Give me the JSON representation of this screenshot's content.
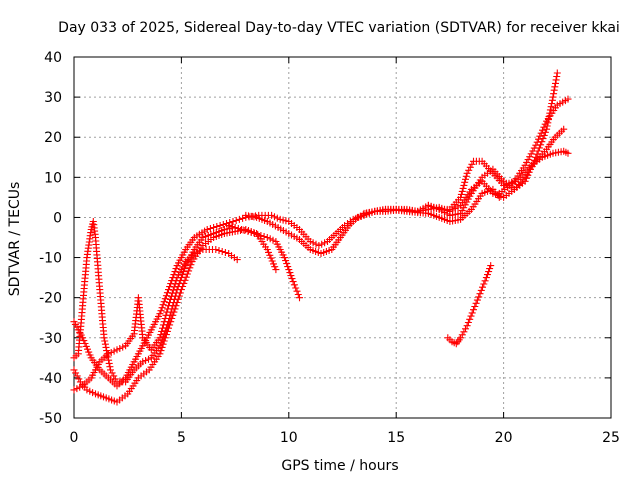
{
  "chart_data": {
    "type": "scatter",
    "title": "Day 033 of 2025, Sidereal Day-to-day VTEC variation (SDTVAR) for receiver kkai",
    "xlabel": "GPS time / hours",
    "ylabel": "SDTVAR / TECUs",
    "xlim": [
      0,
      25
    ],
    "ylim": [
      -50,
      40
    ],
    "x_ticks": [
      0,
      5,
      10,
      15,
      20,
      25
    ],
    "y_ticks": [
      -50,
      -40,
      -30,
      -20,
      -10,
      0,
      10,
      20,
      30,
      40
    ],
    "x_tick_labels": [
      "0",
      "5",
      "10",
      "15",
      "20",
      "25"
    ],
    "y_tick_labels": [
      "-50",
      "-40",
      "-30",
      "-20",
      "-10",
      "0",
      "10",
      "20",
      "30",
      "40"
    ],
    "grid": true,
    "marker": "plus",
    "color": "#ff0000",
    "series": [
      {
        "name": "track-1",
        "points": [
          [
            0.0,
            -35
          ],
          [
            0.2,
            -34
          ],
          [
            0.4,
            -22
          ],
          [
            0.6,
            -10
          ],
          [
            0.8,
            -3
          ],
          [
            0.9,
            -1
          ],
          [
            1.0,
            -5
          ],
          [
            1.2,
            -18
          ],
          [
            1.4,
            -30
          ],
          [
            1.7,
            -38
          ],
          [
            2.0,
            -41
          ],
          [
            2.4,
            -41
          ],
          [
            2.8,
            -38
          ],
          [
            3.2,
            -36
          ],
          [
            3.6,
            -35
          ],
          [
            4.0,
            -32
          ],
          [
            4.4,
            -26
          ],
          [
            4.8,
            -18
          ],
          [
            5.2,
            -12
          ],
          [
            5.6,
            -8
          ],
          [
            6.0,
            -5
          ],
          [
            6.5,
            -4
          ],
          [
            7.0,
            -3
          ],
          [
            7.5,
            -2.5
          ]
        ]
      },
      {
        "name": "track-2",
        "points": [
          [
            0.0,
            -26
          ],
          [
            0.4,
            -30
          ],
          [
            0.8,
            -35
          ],
          [
            1.2,
            -38
          ],
          [
            1.6,
            -40
          ],
          [
            2.0,
            -42
          ],
          [
            2.4,
            -40
          ],
          [
            2.8,
            -36
          ],
          [
            3.2,
            -32
          ],
          [
            3.6,
            -28
          ],
          [
            4.0,
            -24
          ],
          [
            4.4,
            -18
          ],
          [
            4.8,
            -12
          ],
          [
            5.2,
            -8
          ],
          [
            5.6,
            -5
          ],
          [
            6.2,
            -3
          ],
          [
            6.8,
            -2
          ],
          [
            7.4,
            -1
          ],
          [
            8.0,
            0
          ],
          [
            8.6,
            0.5
          ],
          [
            9.2,
            0.5
          ],
          [
            9.6,
            -0.5
          ],
          [
            10.0,
            -1
          ],
          [
            10.5,
            -3
          ],
          [
            11.0,
            -6
          ],
          [
            11.4,
            -7
          ],
          [
            11.8,
            -6
          ],
          [
            12.2,
            -4
          ],
          [
            12.6,
            -2
          ],
          [
            13.0,
            -0.5
          ],
          [
            13.5,
            0.5
          ],
          [
            14.0,
            1.5
          ],
          [
            14.5,
            2
          ],
          [
            15.0,
            2
          ],
          [
            15.5,
            1.8
          ],
          [
            16.0,
            1.5
          ],
          [
            16.5,
            2
          ],
          [
            17.0,
            2.5
          ],
          [
            17.5,
            1.5
          ],
          [
            18.0,
            3
          ],
          [
            18.5,
            7
          ],
          [
            19.0,
            9
          ],
          [
            19.5,
            6
          ],
          [
            20.0,
            5
          ],
          [
            20.5,
            7
          ],
          [
            21.0,
            10
          ],
          [
            21.5,
            14
          ],
          [
            22.0,
            17
          ],
          [
            22.4,
            20
          ],
          [
            22.8,
            22
          ]
        ]
      },
      {
        "name": "track-3",
        "points": [
          [
            0.0,
            -43
          ],
          [
            0.4,
            -42
          ],
          [
            0.8,
            -40
          ],
          [
            1.2,
            -36
          ],
          [
            1.6,
            -34
          ],
          [
            2.0,
            -33
          ],
          [
            2.4,
            -32
          ],
          [
            2.8,
            -29
          ],
          [
            3.0,
            -20
          ],
          [
            3.2,
            -30
          ],
          [
            3.6,
            -33
          ],
          [
            4.0,
            -30
          ],
          [
            4.4,
            -22
          ],
          [
            4.8,
            -15
          ],
          [
            5.2,
            -11
          ],
          [
            5.6,
            -9
          ],
          [
            6.0,
            -8
          ],
          [
            6.6,
            -8
          ],
          [
            7.2,
            -9
          ],
          [
            7.6,
            -10.5
          ]
        ]
      },
      {
        "name": "track-4",
        "points": [
          [
            0.0,
            -38
          ],
          [
            0.3,
            -41
          ],
          [
            0.6,
            -43
          ],
          [
            1.0,
            -44
          ],
          [
            1.5,
            -45
          ],
          [
            2.0,
            -46
          ],
          [
            2.5,
            -44
          ],
          [
            3.0,
            -40
          ],
          [
            3.5,
            -38
          ],
          [
            4.0,
            -34
          ],
          [
            4.5,
            -26
          ],
          [
            5.0,
            -18
          ],
          [
            5.5,
            -11
          ],
          [
            6.0,
            -7
          ],
          [
            6.5,
            -5
          ],
          [
            7.0,
            -4
          ],
          [
            7.5,
            -3.5
          ],
          [
            8.0,
            -3
          ],
          [
            8.5,
            -4
          ],
          [
            9.0,
            -8
          ],
          [
            9.4,
            -13
          ]
        ]
      },
      {
        "name": "track-5",
        "points": [
          [
            7.2,
            -2
          ],
          [
            7.8,
            -3
          ],
          [
            8.4,
            -4
          ],
          [
            9.0,
            -5
          ],
          [
            9.4,
            -6
          ],
          [
            9.8,
            -10
          ],
          [
            10.2,
            -16
          ],
          [
            10.5,
            -20
          ]
        ]
      },
      {
        "name": "track-6",
        "points": [
          [
            8.0,
            0.5
          ],
          [
            8.5,
            0
          ],
          [
            9.0,
            -1
          ],
          [
            9.5,
            -2.5
          ],
          [
            10.0,
            -4
          ],
          [
            10.5,
            -5.5
          ],
          [
            11.0,
            -8
          ],
          [
            11.5,
            -9
          ],
          [
            12.0,
            -8
          ],
          [
            12.4,
            -5
          ],
          [
            12.8,
            -2
          ],
          [
            13.2,
            0
          ],
          [
            13.6,
            1
          ],
          [
            14.0,
            1.5
          ],
          [
            14.5,
            1.5
          ],
          [
            15.0,
            1.8
          ],
          [
            15.5,
            1.5
          ],
          [
            16.0,
            1.2
          ],
          [
            16.5,
            1
          ],
          [
            17.0,
            0
          ],
          [
            17.5,
            -1
          ],
          [
            18.0,
            -0.5
          ],
          [
            18.5,
            2
          ],
          [
            19.0,
            6
          ],
          [
            19.5,
            7
          ],
          [
            19.8,
            5
          ]
        ]
      },
      {
        "name": "track-7",
        "points": [
          [
            13.5,
            1
          ],
          [
            14.0,
            1.5
          ],
          [
            14.5,
            2
          ],
          [
            15.0,
            2
          ],
          [
            15.5,
            2
          ],
          [
            16.0,
            1.5
          ],
          [
            16.5,
            3
          ],
          [
            17.0,
            2
          ],
          [
            17.5,
            0.5
          ],
          [
            18.0,
            1
          ],
          [
            18.5,
            6
          ],
          [
            19.0,
            10
          ],
          [
            19.5,
            12
          ],
          [
            20.0,
            9
          ],
          [
            20.5,
            7
          ],
          [
            21.0,
            9
          ],
          [
            21.5,
            15
          ],
          [
            22.0,
            22
          ],
          [
            22.3,
            30
          ],
          [
            22.5,
            36
          ]
        ]
      },
      {
        "name": "track-8",
        "points": [
          [
            16.5,
            3
          ],
          [
            17.0,
            2
          ],
          [
            17.5,
            2
          ],
          [
            18.0,
            5
          ],
          [
            18.3,
            11
          ],
          [
            18.6,
            14
          ],
          [
            19.0,
            14
          ],
          [
            19.5,
            11
          ],
          [
            20.0,
            8
          ],
          [
            20.5,
            9
          ],
          [
            21.0,
            13
          ],
          [
            21.5,
            18
          ],
          [
            22.0,
            24
          ],
          [
            22.5,
            28
          ],
          [
            23.0,
            29.5
          ]
        ]
      },
      {
        "name": "track-9",
        "points": [
          [
            19.8,
            6
          ],
          [
            20.3,
            8
          ],
          [
            20.8,
            10
          ],
          [
            21.3,
            13
          ],
          [
            21.8,
            15
          ],
          [
            22.3,
            16
          ],
          [
            22.8,
            16.5
          ],
          [
            23.0,
            16
          ]
        ]
      },
      {
        "name": "track-10",
        "points": [
          [
            17.4,
            -30
          ],
          [
            17.6,
            -31
          ],
          [
            17.8,
            -31.5
          ],
          [
            18.0,
            -30
          ],
          [
            18.3,
            -27
          ],
          [
            18.6,
            -23
          ],
          [
            18.9,
            -19
          ],
          [
            19.2,
            -15
          ],
          [
            19.4,
            -12
          ]
        ]
      }
    ]
  }
}
